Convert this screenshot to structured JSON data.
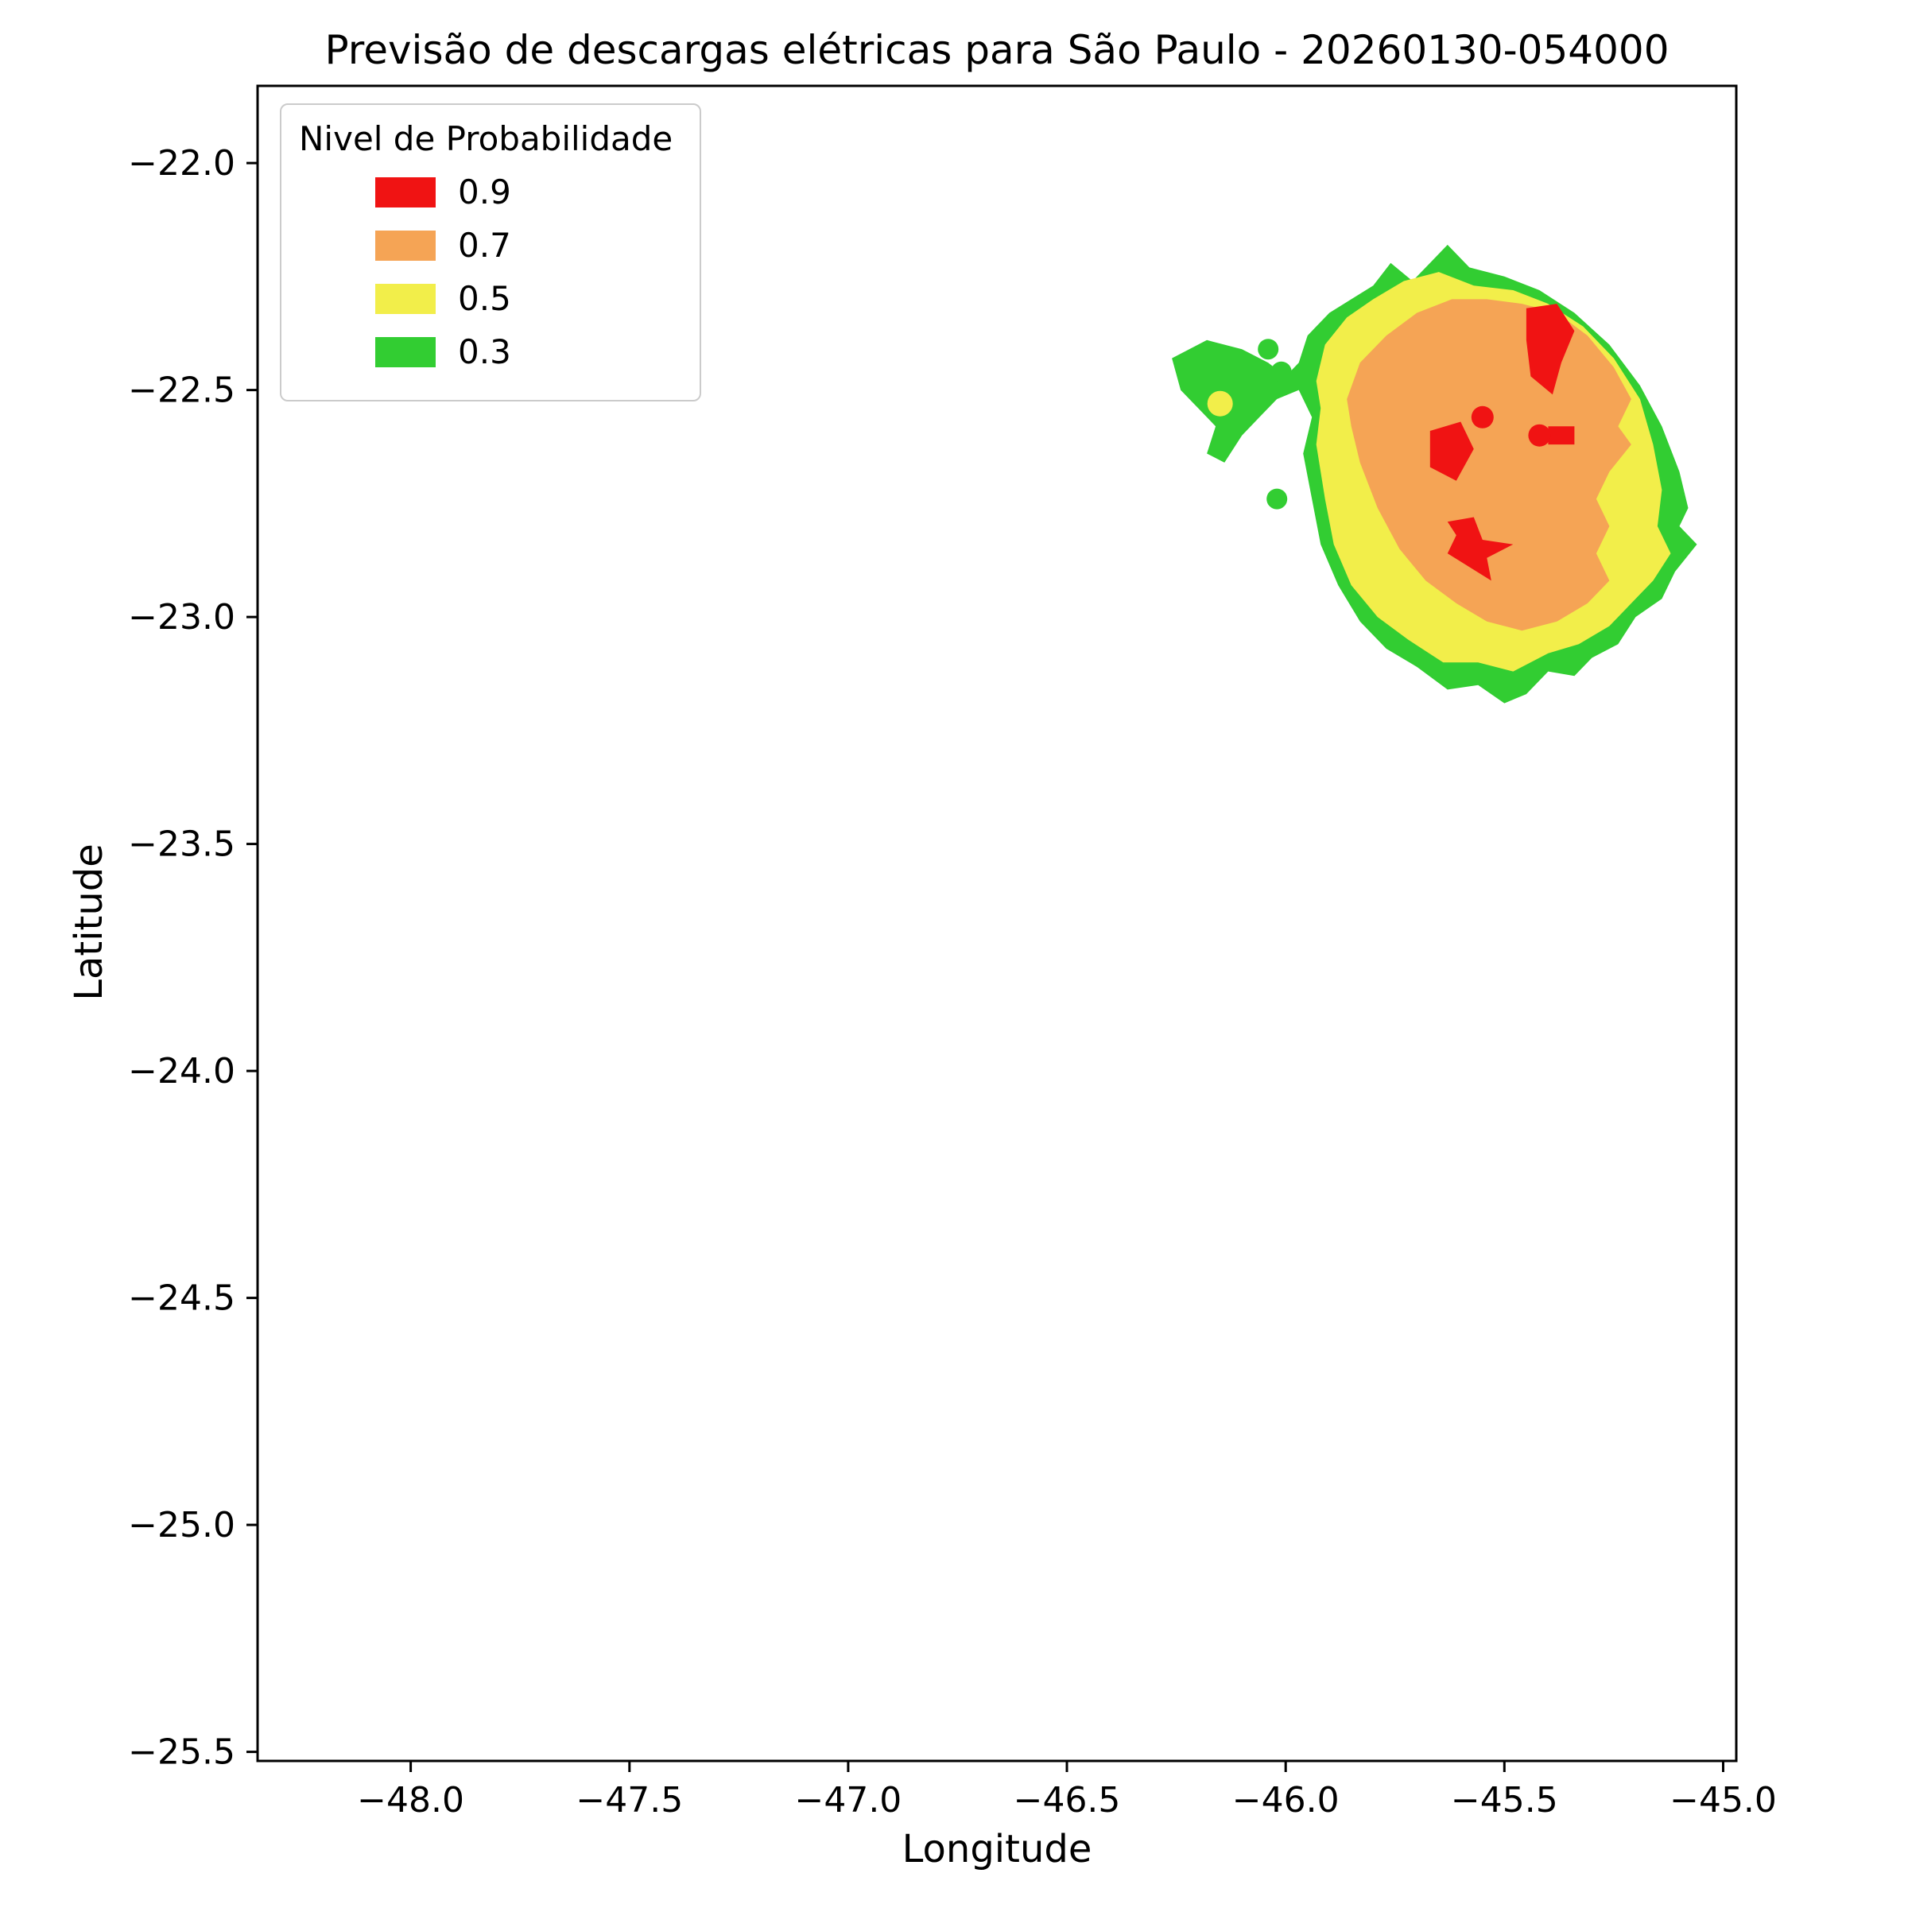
{
  "figure_title": "Previsão de descargas elétricas para São Paulo - 20260130-054000",
  "chart_data": {
    "type": "area",
    "subtype": "filled-contour-probability-map",
    "title": "Previsão de descargas elétricas para São Paulo - 20260130-054000",
    "xlabel": "Longitude",
    "ylabel": "Latitude",
    "xlim": [
      -48.35,
      -44.97
    ],
    "ylim": [
      -25.52,
      -21.83
    ],
    "grid": false,
    "xticks": [
      {
        "value": -48.0,
        "label": "−48.0"
      },
      {
        "value": -47.5,
        "label": "−47.5"
      },
      {
        "value": -47.0,
        "label": "−47.0"
      },
      {
        "value": -46.5,
        "label": "−46.5"
      },
      {
        "value": -46.0,
        "label": "−46.0"
      },
      {
        "value": -45.5,
        "label": "−45.5"
      },
      {
        "value": -45.0,
        "label": "−45.0"
      }
    ],
    "yticks": [
      {
        "value": -22.0,
        "label": "−22.0"
      },
      {
        "value": -22.5,
        "label": "−22.5"
      },
      {
        "value": -23.0,
        "label": "−23.0"
      },
      {
        "value": -23.5,
        "label": "−23.5"
      },
      {
        "value": -24.0,
        "label": "−24.0"
      },
      {
        "value": -24.5,
        "label": "−24.5"
      },
      {
        "value": -25.0,
        "label": "−25.0"
      },
      {
        "value": -25.5,
        "label": "−25.5"
      }
    ],
    "legend": {
      "title": "Nivel de Probabilidade",
      "position": "upper left",
      "entries": [
        {
          "label": "0.9",
          "color": "#f01313"
        },
        {
          "label": "0.7",
          "color": "#f5a455"
        },
        {
          "label": "0.5",
          "color": "#f2ee4a"
        },
        {
          "label": "0.3",
          "color": "#32cd32"
        }
      ]
    },
    "regions": [
      {
        "level": 0.3,
        "color": "#32cd32",
        "points": [
          [
            -46.26,
            -22.43
          ],
          [
            -46.18,
            -22.39
          ],
          [
            -46.1,
            -22.41
          ],
          [
            -46.04,
            -22.44
          ],
          [
            -46.0,
            -22.47
          ],
          [
            -45.97,
            -22.44
          ],
          [
            -45.95,
            -22.38
          ],
          [
            -45.9,
            -22.33
          ],
          [
            -45.85,
            -22.3
          ],
          [
            -45.8,
            -22.27
          ],
          [
            -45.76,
            -22.22
          ],
          [
            -45.71,
            -22.26
          ],
          [
            -45.67,
            -22.22
          ],
          [
            -45.63,
            -22.18
          ],
          [
            -45.58,
            -22.23
          ],
          [
            -45.5,
            -22.25
          ],
          [
            -45.42,
            -22.28
          ],
          [
            -45.34,
            -22.33
          ],
          [
            -45.26,
            -22.4
          ],
          [
            -45.19,
            -22.49
          ],
          [
            -45.14,
            -22.58
          ],
          [
            -45.1,
            -22.68
          ],
          [
            -45.08,
            -22.76
          ],
          [
            -45.1,
            -22.8
          ],
          [
            -45.06,
            -22.84
          ],
          [
            -45.11,
            -22.9
          ],
          [
            -45.14,
            -22.96
          ],
          [
            -45.2,
            -23.0
          ],
          [
            -45.24,
            -23.06
          ],
          [
            -45.3,
            -23.09
          ],
          [
            -45.34,
            -23.13
          ],
          [
            -45.4,
            -23.12
          ],
          [
            -45.45,
            -23.17
          ],
          [
            -45.5,
            -23.19
          ],
          [
            -45.56,
            -23.15
          ],
          [
            -45.63,
            -23.16
          ],
          [
            -45.7,
            -23.11
          ],
          [
            -45.77,
            -23.07
          ],
          [
            -45.83,
            -23.01
          ],
          [
            -45.88,
            -22.93
          ],
          [
            -45.92,
            -22.84
          ],
          [
            -45.94,
            -22.74
          ],
          [
            -45.96,
            -22.64
          ],
          [
            -45.94,
            -22.56
          ],
          [
            -45.97,
            -22.5
          ],
          [
            -46.02,
            -22.52
          ],
          [
            -46.06,
            -22.56
          ],
          [
            -46.1,
            -22.6
          ],
          [
            -46.14,
            -22.66
          ],
          [
            -46.18,
            -22.64
          ],
          [
            -46.16,
            -22.58
          ],
          [
            -46.2,
            -22.54
          ],
          [
            -46.24,
            -22.5
          ]
        ]
      },
      {
        "level": 0.5,
        "color": "#f2ee4a",
        "points": [
          [
            -45.93,
            -22.48
          ],
          [
            -45.91,
            -22.4
          ],
          [
            -45.86,
            -22.34
          ],
          [
            -45.8,
            -22.3
          ],
          [
            -45.73,
            -22.26
          ],
          [
            -45.65,
            -22.24
          ],
          [
            -45.57,
            -22.27
          ],
          [
            -45.48,
            -22.28
          ],
          [
            -45.4,
            -22.31
          ],
          [
            -45.32,
            -22.36
          ],
          [
            -45.25,
            -22.43
          ],
          [
            -45.19,
            -22.52
          ],
          [
            -45.16,
            -22.62
          ],
          [
            -45.14,
            -22.72
          ],
          [
            -45.15,
            -22.8
          ],
          [
            -45.12,
            -22.86
          ],
          [
            -45.16,
            -22.92
          ],
          [
            -45.21,
            -22.97
          ],
          [
            -45.26,
            -23.02
          ],
          [
            -45.33,
            -23.06
          ],
          [
            -45.4,
            -23.08
          ],
          [
            -45.48,
            -23.12
          ],
          [
            -45.56,
            -23.1
          ],
          [
            -45.64,
            -23.1
          ],
          [
            -45.72,
            -23.05
          ],
          [
            -45.79,
            -23.0
          ],
          [
            -45.85,
            -22.93
          ],
          [
            -45.89,
            -22.84
          ],
          [
            -45.91,
            -22.74
          ],
          [
            -45.93,
            -22.62
          ],
          [
            -45.92,
            -22.54
          ]
        ]
      },
      {
        "level": 0.7,
        "color": "#f5a455",
        "points": [
          [
            -45.86,
            -22.52
          ],
          [
            -45.83,
            -22.44
          ],
          [
            -45.77,
            -22.38
          ],
          [
            -45.7,
            -22.33
          ],
          [
            -45.62,
            -22.3
          ],
          [
            -45.54,
            -22.3
          ],
          [
            -45.46,
            -22.31
          ],
          [
            -45.38,
            -22.33
          ],
          [
            -45.31,
            -22.38
          ],
          [
            -45.25,
            -22.45
          ],
          [
            -45.21,
            -22.52
          ],
          [
            -45.24,
            -22.58
          ],
          [
            -45.21,
            -22.62
          ],
          [
            -45.26,
            -22.68
          ],
          [
            -45.29,
            -22.74
          ],
          [
            -45.26,
            -22.8
          ],
          [
            -45.29,
            -22.86
          ],
          [
            -45.26,
            -22.92
          ],
          [
            -45.31,
            -22.97
          ],
          [
            -45.38,
            -23.01
          ],
          [
            -45.46,
            -23.03
          ],
          [
            -45.54,
            -23.01
          ],
          [
            -45.61,
            -22.97
          ],
          [
            -45.68,
            -22.92
          ],
          [
            -45.74,
            -22.85
          ],
          [
            -45.79,
            -22.76
          ],
          [
            -45.83,
            -22.66
          ],
          [
            -45.85,
            -22.58
          ]
        ]
      },
      {
        "level": 0.9,
        "color": "#f01313",
        "points": [
          [
            -45.45,
            -22.32
          ],
          [
            -45.38,
            -22.31
          ],
          [
            -45.34,
            -22.37
          ],
          [
            -45.37,
            -22.44
          ],
          [
            -45.39,
            -22.51
          ],
          [
            -45.44,
            -22.47
          ],
          [
            -45.45,
            -22.39
          ]
        ]
      },
      {
        "level": 0.9,
        "color": "#f01313",
        "points": [
          [
            -45.67,
            -22.59
          ],
          [
            -45.6,
            -22.57
          ],
          [
            -45.57,
            -22.63
          ],
          [
            -45.61,
            -22.7
          ],
          [
            -45.67,
            -22.67
          ]
        ]
      },
      {
        "level": 0.9,
        "color": "#f01313",
        "points": [
          [
            -45.63,
            -22.79
          ],
          [
            -45.57,
            -22.78
          ],
          [
            -45.55,
            -22.83
          ],
          [
            -45.48,
            -22.84
          ],
          [
            -45.54,
            -22.87
          ],
          [
            -45.53,
            -22.92
          ],
          [
            -45.58,
            -22.89
          ],
          [
            -45.63,
            -22.86
          ],
          [
            -45.61,
            -22.82
          ]
        ]
      },
      {
        "level": 0.9,
        "color": "#f01313",
        "points": [
          [
            -45.4,
            -22.58
          ],
          [
            -45.34,
            -22.58
          ],
          [
            -45.34,
            -22.62
          ],
          [
            -45.4,
            -22.62
          ]
        ]
      }
    ],
    "markers": [
      {
        "lon": -46.15,
        "lat": -22.53,
        "color": "#f2ee4a",
        "r": 16,
        "level": 0.5
      },
      {
        "lon": -46.04,
        "lat": -22.41,
        "color": "#32cd32",
        "r": 13,
        "level": 0.3
      },
      {
        "lon": -46.01,
        "lat": -22.46,
        "color": "#32cd32",
        "r": 13,
        "level": 0.3
      },
      {
        "lon": -46.02,
        "lat": -22.74,
        "color": "#32cd32",
        "r": 13,
        "level": 0.3
      },
      {
        "lon": -45.55,
        "lat": -22.56,
        "color": "#f01313",
        "r": 14,
        "level": 0.9
      },
      {
        "lon": -45.42,
        "lat": -22.6,
        "color": "#f01313",
        "r": 14,
        "level": 0.9
      }
    ]
  }
}
